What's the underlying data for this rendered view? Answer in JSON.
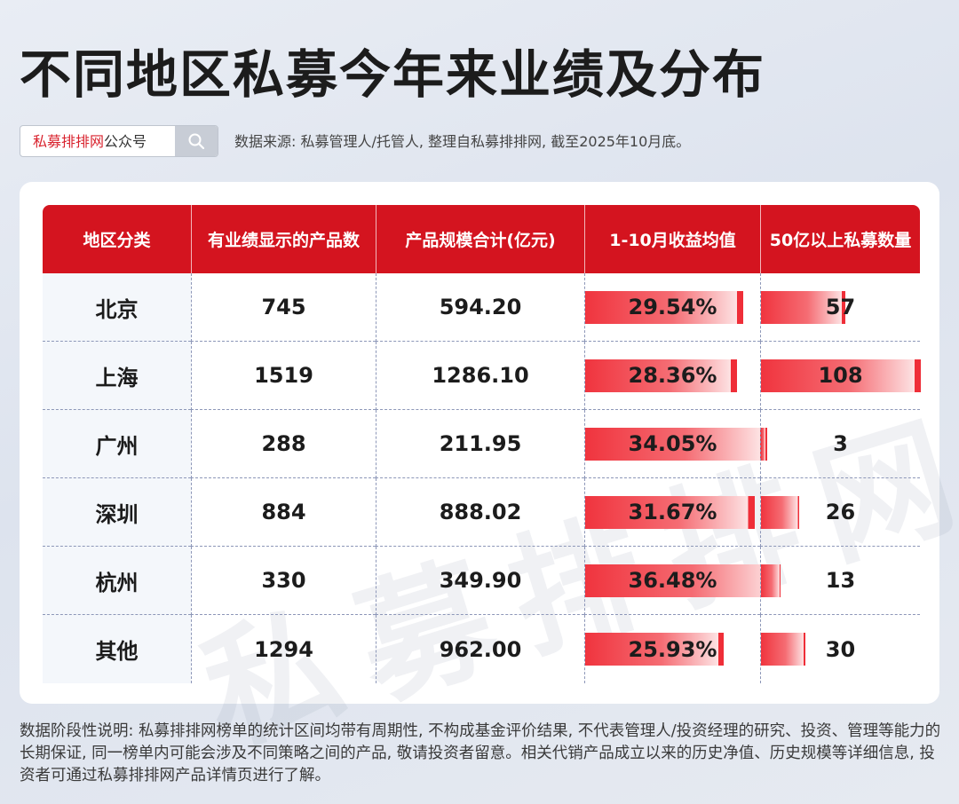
{
  "title": "不同地区私募今年来业绩及分布",
  "search": {
    "brand": "私募排排网",
    "suffix": "公众号"
  },
  "source": "数据来源: 私募管理人/托管人, 整理自私募排排网, 截至2025年10月底。",
  "watermark": "私募排排网",
  "chart_data": {
    "type": "table",
    "columns": [
      "地区分类",
      "有业绩显示的产品数",
      "产品规模合计(亿元)",
      "1-10月收益均值",
      "50亿以上私募数量"
    ],
    "rows": [
      {
        "region": "北京",
        "products": "745",
        "scale": "594.20",
        "return": "29.54%",
        "return_value": 29.54,
        "large": "57",
        "large_value": 57
      },
      {
        "region": "上海",
        "products": "1519",
        "scale": "1286.10",
        "return": "28.36%",
        "return_value": 28.36,
        "large": "108",
        "large_value": 108
      },
      {
        "region": "广州",
        "products": "288",
        "scale": "211.95",
        "return": "34.05%",
        "return_value": 34.05,
        "large": "3",
        "large_value": 3
      },
      {
        "region": "深圳",
        "products": "884",
        "scale": "888.02",
        "return": "31.67%",
        "return_value": 31.67,
        "large": "26",
        "large_value": 26
      },
      {
        "region": "杭州",
        "products": "330",
        "scale": "349.90",
        "return": "36.48%",
        "return_value": 36.48,
        "large": "13",
        "large_value": 13
      },
      {
        "region": "其他",
        "products": "1294",
        "scale": "962.00",
        "return": "25.93%",
        "return_value": 25.93,
        "large": "30",
        "large_value": 30
      }
    ]
  },
  "disclaimer": "数据阶段性说明: 私募排排网榜单的统计区间均带有周期性, 不构成基金评价结果, 不代表管理人/投资经理的研究、投资、管理等能力的长期保证, 同一榜单内可能会涉及不同策略之间的产品, 敬请投资者留意。相关代销产品成立以来的历史净值、历史规模等详细信息, 投资者可通过私募排排网产品详情页进行了解。"
}
